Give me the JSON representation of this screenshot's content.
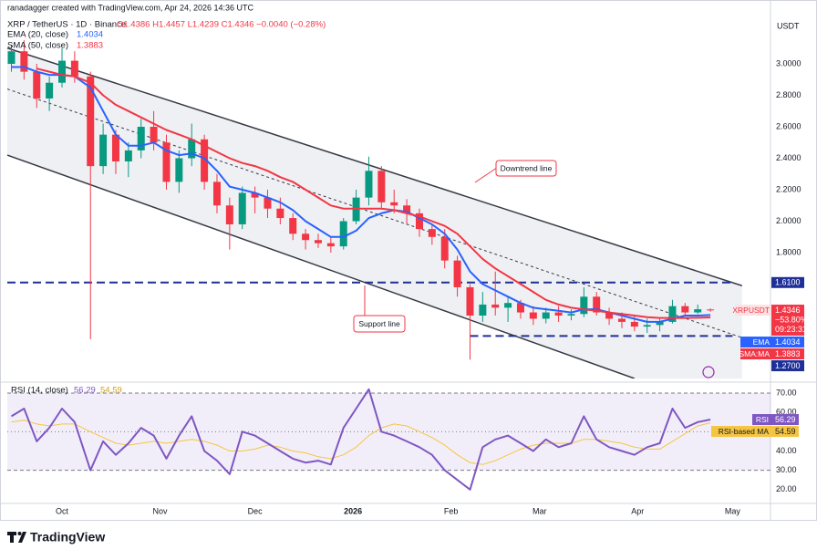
{
  "header": {
    "author": "ranadagger created with TradingView.com, Apr 24, 2026 14:36 UTC",
    "currency": "USDT"
  },
  "footer": {
    "brand": "TradingView"
  },
  "chart_data": [
    {
      "type": "candlestick",
      "title": "XRP / TetherUS · 1D · Binance",
      "ohlc_text": "O1.4386 H1.4457 L1.4239 C1.4346 −0.0040 (−0.28%)",
      "up_color": "#089981",
      "down_color": "#f23645",
      "x": [
        -16,
        -12,
        -8,
        -4,
        0,
        4,
        9,
        13,
        17,
        21,
        25,
        29,
        33,
        37,
        41,
        45,
        49,
        53,
        57,
        61,
        65,
        69,
        73,
        77,
        81,
        85,
        89,
        93,
        97,
        101,
        105,
        109,
        113,
        117,
        121,
        125,
        129,
        133,
        137,
        141,
        145,
        149,
        153,
        157,
        161,
        165,
        169,
        173,
        177,
        181,
        185,
        189,
        193,
        197,
        201,
        205
      ],
      "open": [
        3.0,
        3.08,
        2.95,
        2.78,
        2.88,
        3.02,
        2.92,
        2.35,
        2.55,
        2.38,
        2.45,
        2.6,
        2.5,
        2.25,
        2.4,
        2.52,
        2.25,
        2.1,
        1.98,
        2.18,
        2.15,
        2.08,
        2.02,
        1.92,
        1.88,
        1.86,
        1.84,
        2.0,
        2.15,
        2.32,
        2.12,
        2.1,
        2.05,
        1.95,
        1.9,
        1.75,
        1.58,
        1.4,
        1.47,
        1.45,
        1.48,
        1.42,
        1.38,
        1.42,
        1.4,
        1.41,
        1.52,
        1.42,
        1.38,
        1.36,
        1.33,
        1.34,
        1.36,
        1.46,
        1.42,
        1.4386
      ],
      "high": [
        3.12,
        3.15,
        3.0,
        2.92,
        3.1,
        3.08,
        2.95,
        2.62,
        2.58,
        2.5,
        2.65,
        2.7,
        2.55,
        2.45,
        2.62,
        2.55,
        2.3,
        2.15,
        2.22,
        2.22,
        2.2,
        2.15,
        2.05,
        1.95,
        1.92,
        1.9,
        2.02,
        2.2,
        2.41,
        2.35,
        2.2,
        2.14,
        2.08,
        1.98,
        1.95,
        1.78,
        1.6,
        1.55,
        1.68,
        1.52,
        1.5,
        1.46,
        1.45,
        1.46,
        1.44,
        1.58,
        1.55,
        1.45,
        1.42,
        1.4,
        1.38,
        1.38,
        1.5,
        1.48,
        1.47,
        1.4457
      ],
      "low": [
        2.95,
        2.9,
        2.72,
        2.7,
        2.85,
        2.88,
        1.25,
        2.3,
        2.3,
        2.28,
        2.4,
        2.45,
        2.2,
        2.18,
        2.35,
        2.2,
        2.05,
        1.82,
        1.95,
        2.05,
        2.02,
        1.98,
        1.88,
        1.82,
        1.83,
        1.8,
        1.82,
        1.98,
        2.1,
        2.08,
        2.05,
        1.98,
        1.9,
        1.85,
        1.7,
        1.52,
        1.12,
        1.36,
        1.4,
        1.36,
        1.38,
        1.34,
        1.35,
        1.36,
        1.37,
        1.39,
        1.4,
        1.34,
        1.32,
        1.3,
        1.29,
        1.3,
        1.35,
        1.4,
        1.41,
        1.4239
      ],
      "close": [
        3.08,
        2.95,
        2.78,
        2.88,
        3.02,
        2.92,
        2.35,
        2.55,
        2.38,
        2.45,
        2.6,
        2.5,
        2.25,
        2.4,
        2.52,
        2.25,
        2.1,
        1.98,
        2.18,
        2.15,
        2.08,
        2.02,
        1.92,
        1.88,
        1.86,
        1.84,
        2.0,
        2.15,
        2.32,
        2.12,
        2.1,
        2.05,
        1.95,
        1.9,
        1.75,
        1.58,
        1.4,
        1.47,
        1.45,
        1.48,
        1.42,
        1.38,
        1.42,
        1.4,
        1.41,
        1.52,
        1.42,
        1.38,
        1.36,
        1.33,
        1.34,
        1.36,
        1.46,
        1.42,
        1.44,
        1.4346
      ],
      "series": [
        {
          "name": "EMA (20, close)",
          "tag": "EMA",
          "color": "#2962ff",
          "values": [
            2.98,
            2.98,
            2.95,
            2.93,
            2.93,
            2.92,
            2.85,
            2.7,
            2.55,
            2.48,
            2.48,
            2.5,
            2.45,
            2.42,
            2.43,
            2.4,
            2.32,
            2.22,
            2.2,
            2.18,
            2.15,
            2.12,
            2.07,
            2.0,
            1.95,
            1.9,
            1.9,
            1.94,
            2.02,
            2.05,
            2.07,
            2.06,
            2.02,
            1.98,
            1.92,
            1.82,
            1.68,
            1.6,
            1.56,
            1.52,
            1.48,
            1.45,
            1.44,
            1.43,
            1.42,
            1.44,
            1.44,
            1.42,
            1.4,
            1.38,
            1.36,
            1.36,
            1.38,
            1.4,
            1.4,
            1.4034
          ]
        },
        {
          "name": "SMA (50, close)",
          "tag": "SMA:MA",
          "color": "#f23645",
          "values": [
            null,
            null,
            2.97,
            2.95,
            2.93,
            2.92,
            2.88,
            2.8,
            2.74,
            2.7,
            2.66,
            2.62,
            2.58,
            2.55,
            2.52,
            2.48,
            2.44,
            2.4,
            2.37,
            2.35,
            2.32,
            2.28,
            2.25,
            2.2,
            2.15,
            2.1,
            2.08,
            2.08,
            2.08,
            2.08,
            2.07,
            2.05,
            2.03,
            2.0,
            1.97,
            1.92,
            1.84,
            1.76,
            1.7,
            1.65,
            1.6,
            1.55,
            1.5,
            1.47,
            1.45,
            1.44,
            1.43,
            1.42,
            1.41,
            1.4,
            1.39,
            1.385,
            1.385,
            1.385,
            1.386,
            1.3883
          ]
        }
      ],
      "last_tag": {
        "name": "XRPUSDT",
        "change": "−53.80%",
        "countdown": "09:23:31",
        "color": "#f23645"
      },
      "trendlines": [
        {
          "label": "Downtrend line",
          "x": [
            -17.3,
            215
          ],
          "values": [
            3.1,
            1.59
          ]
        },
        {
          "label": "Support line",
          "x": [
            -17.3,
            181
          ],
          "values": [
            2.42,
            1.0
          ]
        },
        {
          "x": [
            -17.3,
            215
          ],
          "values": [
            2.84,
            1.26
          ],
          "dashed": true
        }
      ],
      "levels": [
        {
          "value": 1.61,
          "label": "1.6100",
          "x": [
            -17.3,
            212
          ]
        },
        {
          "value": 1.27,
          "label": "1.2700",
          "x": [
            129,
            212
          ]
        }
      ],
      "level_color": "#1e2f97",
      "xlim": [
        -17.3,
        224
      ],
      "ylim": [
        1.0,
        3.29
      ],
      "yticks": [
        {
          "value": 1.8,
          "label": "1.8000"
        },
        {
          "value": 2.0,
          "label": "2.0000"
        },
        {
          "value": 2.2,
          "label": "2.2000"
        },
        {
          "value": 2.4,
          "label": "2.4000"
        },
        {
          "value": 2.6,
          "label": "2.6000"
        },
        {
          "value": 2.8,
          "label": "2.8000"
        },
        {
          "value": 3.0,
          "label": "3.0000"
        }
      ],
      "grid": false
    },
    {
      "type": "line",
      "title": "RSI (14, close)",
      "x": [
        -16,
        -12,
        -8,
        -4,
        0,
        4,
        9,
        13,
        17,
        21,
        25,
        29,
        33,
        37,
        41,
        45,
        49,
        53,
        57,
        61,
        65,
        69,
        73,
        77,
        81,
        85,
        89,
        93,
        97,
        101,
        105,
        109,
        113,
        117,
        121,
        125,
        129,
        133,
        137,
        141,
        145,
        149,
        153,
        157,
        161,
        165,
        169,
        173,
        177,
        181,
        185,
        189,
        193,
        197,
        201,
        205
      ],
      "series": [
        {
          "name": "RSI",
          "color": "#7e57c2",
          "values": [
            58,
            62,
            45,
            52,
            62,
            55,
            30,
            45,
            38,
            44,
            52,
            48,
            36,
            48,
            58,
            40,
            35,
            28,
            50,
            48,
            44,
            40,
            36,
            34,
            35,
            33,
            52,
            62,
            72,
            50,
            48,
            45,
            42,
            38,
            30,
            25,
            20,
            42,
            46,
            48,
            44,
            40,
            46,
            42,
            44,
            58,
            46,
            42,
            40,
            38,
            42,
            44,
            62,
            52,
            55,
            56.29
          ]
        },
        {
          "name": "RSI-based MA",
          "color": "#f5c542",
          "values": [
            55,
            56,
            54,
            53,
            54,
            54,
            50,
            47,
            44,
            43,
            44,
            45,
            44,
            45,
            46,
            45,
            43,
            40,
            40,
            41,
            43,
            42,
            40,
            39,
            37,
            36,
            38,
            42,
            48,
            52,
            54,
            53,
            50,
            47,
            43,
            38,
            34,
            33,
            35,
            38,
            41,
            43,
            44,
            44,
            44,
            46,
            46,
            45,
            44,
            42,
            41,
            41,
            45,
            49,
            53,
            54.59
          ]
        }
      ],
      "band": [
        30,
        70
      ],
      "guides": [
        70,
        50,
        30
      ],
      "xlim": [
        -17.3,
        224
      ],
      "ylim": [
        14.7,
        73.8
      ],
      "yticks": [
        {
          "value": 20,
          "label": "20.00"
        },
        {
          "value": 30,
          "label": "30.00"
        },
        {
          "value": 40,
          "label": "40.00"
        },
        {
          "value": 50,
          "label": "50.00"
        },
        {
          "value": 60,
          "label": "60.00"
        },
        {
          "value": 70,
          "label": "70.00"
        }
      ],
      "xticks": [
        {
          "value": 0,
          "label": "Oct"
        },
        {
          "value": 31,
          "label": "Nov"
        },
        {
          "value": 61,
          "label": "Dec"
        },
        {
          "value": 92,
          "label": "2026",
          "bold": true
        },
        {
          "value": 123,
          "label": "Feb"
        },
        {
          "value": 151,
          "label": "Mar"
        },
        {
          "value": 182,
          "label": "Apr"
        },
        {
          "value": 212,
          "label": "May"
        }
      ],
      "grid": false
    }
  ]
}
